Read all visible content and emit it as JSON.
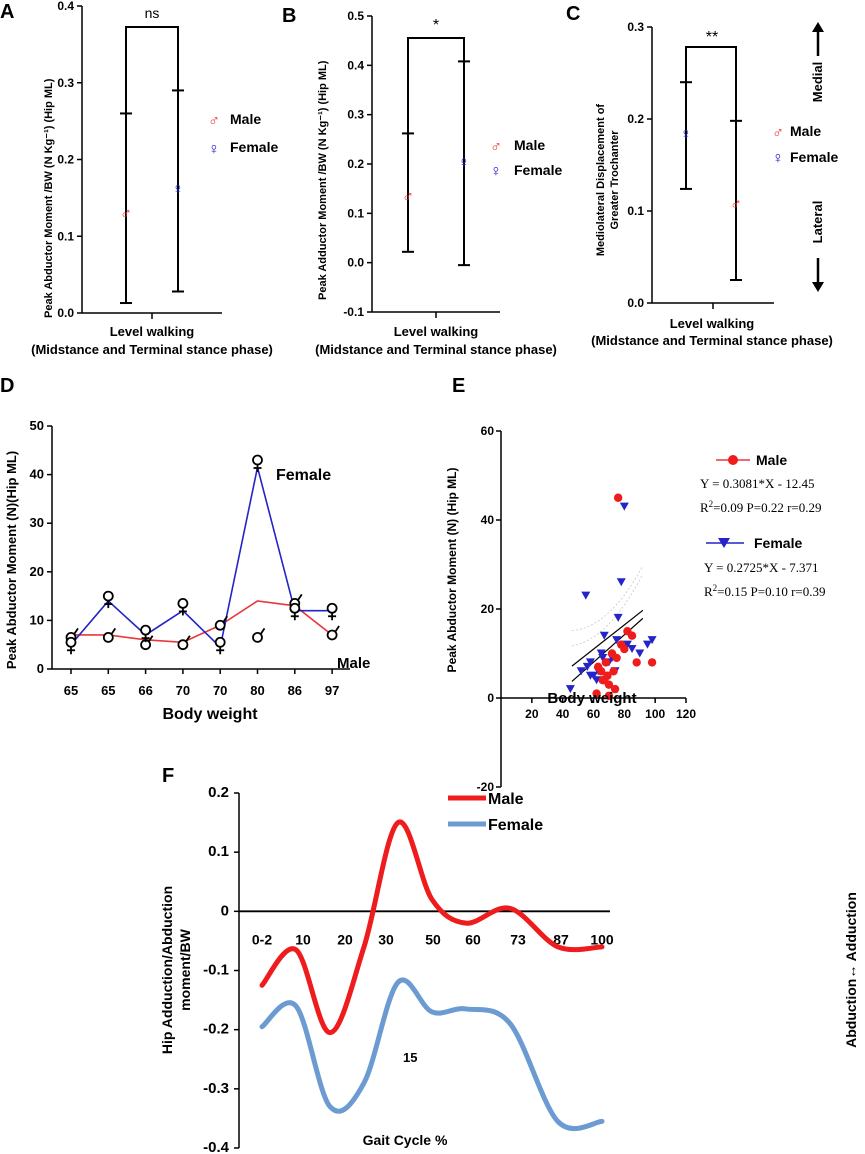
{
  "colors": {
    "male": "#e8383b",
    "female": "#2424c8",
    "axis": "#000000",
    "male_f": "#ee1c1c",
    "female_f": "#6b9bd1"
  },
  "symbols": {
    "male": "♂",
    "female": "♀"
  },
  "chart_data": [
    {
      "id": "A",
      "type": "scatter",
      "panel_label": "A",
      "ylabel": "Peak Abductor Moment /BW (N Kg⁻¹) (Hip ML)",
      "xlabel_line1": "Level walking",
      "xlabel_line2": "(Midstance and Terminal stance phase)",
      "ylim": [
        0,
        0.4
      ],
      "yticks": [
        "0.0",
        "0.1",
        "0.2",
        "0.3",
        "0.4"
      ],
      "series": [
        {
          "name": "Male",
          "mean": 0.13,
          "lower": 0.013,
          "upper": 0.26
        },
        {
          "name": "Female",
          "mean": 0.163,
          "lower": 0.028,
          "upper": 0.29
        }
      ],
      "significance": "ns",
      "legend": [
        "Male",
        "Female"
      ]
    },
    {
      "id": "B",
      "type": "scatter",
      "panel_label": "B",
      "ylabel": "Peak Adductor Moment /BW (N Kg⁻¹) (Hip ML)",
      "xlabel_line1": "Level walking",
      "xlabel_line2": "(Midstance and Terminal stance phase)",
      "ylim": [
        -0.1,
        0.5
      ],
      "yticks": [
        "-0.1",
        "0.0",
        "0.1",
        "0.2",
        "0.3",
        "0.4",
        "0.5"
      ],
      "series": [
        {
          "name": "Male",
          "mean": 0.135,
          "lower": 0.022,
          "upper": 0.262
        },
        {
          "name": "Female",
          "mean": 0.205,
          "lower": -0.005,
          "upper": 0.408
        }
      ],
      "significance": "*",
      "legend": [
        "Male",
        "Female"
      ]
    },
    {
      "id": "C",
      "type": "scatter",
      "panel_label": "C",
      "ylabel_line1": "Mediolateral Displacement of",
      "ylabel_line2": "Greater Trochanter",
      "xlabel_line1": "Level walking",
      "xlabel_line2": "(Midstance and Terminal stance phase)",
      "ylim": [
        0,
        0.3
      ],
      "yticks": [
        "0.0",
        "0.1",
        "0.2",
        "0.3"
      ],
      "series": [
        {
          "name": "Female",
          "mean": 0.185,
          "lower": 0.124,
          "upper": 0.24
        },
        {
          "name": "Male",
          "mean": 0.108,
          "lower": 0.025,
          "upper": 0.198
        }
      ],
      "significance": "**",
      "legend": [
        "Male",
        "Female"
      ],
      "direction_top": "Medial",
      "direction_bottom": "Lateral"
    },
    {
      "id": "D",
      "type": "line",
      "panel_label": "D",
      "ylabel": "Peak Abductor Moment (N)(Hip ML)",
      "xlabel": "Body weight",
      "ylim": [
        0,
        50
      ],
      "yticks": [
        "0",
        "10",
        "20",
        "30",
        "40",
        "50"
      ],
      "categories": [
        "65",
        "65",
        "66",
        "70",
        "70",
        "80",
        "86",
        "97"
      ],
      "series": [
        {
          "name": "Male",
          "values": [
            7,
            7,
            6,
            5.5,
            9,
            14,
            13,
            7
          ]
        },
        {
          "name": "Female",
          "values": [
            5,
            14,
            7,
            12,
            4.5,
            41.5,
            12,
            12
          ]
        }
      ],
      "markers": [
        {
          "name": "Male",
          "values": [
            6.5,
            6.5,
            5,
            5,
            9,
            6.5,
            13.5,
            7
          ]
        },
        {
          "name": "Female",
          "values": [
            5.5,
            15,
            8,
            13.5,
            5.5,
            43,
            12.5,
            12.5
          ]
        }
      ],
      "annotations": [
        "Female",
        "Male"
      ]
    },
    {
      "id": "E",
      "type": "scatter",
      "panel_label": "E",
      "ylabel": "Peak Abductor Moment (N) (Hip ML)",
      "xlabel": "Body weight",
      "xlim": [
        0,
        120
      ],
      "ylim": [
        -20,
        60
      ],
      "xticks": [
        "20",
        "40",
        "60",
        "80",
        "100",
        "120"
      ],
      "yticks": [
        "-20",
        "0",
        "20",
        "40",
        "60"
      ],
      "series": [
        {
          "name": "Male",
          "x": [
            63,
            65,
            67,
            68,
            69,
            70,
            72,
            73,
            75,
            76,
            78,
            80,
            82,
            85,
            88,
            98,
            74,
            70,
            66,
            62
          ],
          "y": [
            7,
            6,
            4,
            8,
            5,
            0.5,
            10,
            6,
            9,
            45,
            12,
            11,
            15,
            14,
            8,
            8,
            2,
            3,
            4,
            1
          ]
        },
        {
          "name": "Female",
          "x": [
            45,
            52,
            55,
            58,
            60,
            62,
            63,
            65,
            67,
            68,
            70,
            72,
            74,
            75,
            78,
            80,
            82,
            85,
            90,
            95,
            98,
            58,
            66,
            76,
            56
          ],
          "y": [
            2,
            6,
            23,
            8,
            5,
            4,
            6,
            10,
            14,
            4,
            8,
            9,
            6,
            13,
            26,
            43,
            12,
            11,
            10,
            12,
            13,
            5,
            9,
            18,
            7
          ]
        }
      ],
      "regressions": [
        {
          "name": "Male",
          "slope": 0.3081,
          "intercept": -12.45
        },
        {
          "name": "Female",
          "slope": 0.2725,
          "intercept": -7.371
        }
      ],
      "legend": [
        "Male",
        "Female"
      ],
      "stats": [
        {
          "eq": "Y = 0.3081*X - 12.45",
          "r2_prefix": "R",
          "r2_sup": "2",
          "r2_rest": "=0.09  P=0.22 r=0.29"
        },
        {
          "eq": "Y = 0.2725*X - 7.371",
          "r2_prefix": "R",
          "r2_sup": "2",
          "r2_rest": "=0.15  P=0.10 r=0.39"
        }
      ]
    },
    {
      "id": "F",
      "type": "line",
      "panel_label": "F",
      "ylabel_line1": "Hip Adduction/Abduction",
      "ylabel_line2": "moment/BW",
      "xlabel": "Gait Cycle %",
      "ylim": [
        -0.4,
        0.2
      ],
      "yticks": [
        "0.2",
        "0.1",
        "0",
        "-0.1",
        "-0.2",
        "-0.3",
        "-0.4"
      ],
      "categories": [
        "0-2",
        "10",
        "20",
        "30",
        "50",
        "60",
        "73",
        "87",
        "100"
      ],
      "series": [
        {
          "name": "Male",
          "x": [
            0,
            10,
            20,
            30,
            40,
            50,
            60,
            73,
            87,
            100
          ],
          "values": [
            -0.125,
            -0.065,
            -0.205,
            -0.06,
            0.15,
            0.02,
            -0.02,
            0.005,
            -0.06,
            -0.06
          ]
        },
        {
          "name": "Female",
          "x": [
            0,
            10,
            20,
            30,
            40,
            50,
            60,
            73,
            87,
            100
          ],
          "values": [
            -0.195,
            -0.16,
            -0.33,
            -0.29,
            -0.12,
            -0.17,
            -0.165,
            -0.19,
            -0.355,
            -0.355
          ]
        }
      ],
      "annotation": "15",
      "legend": [
        "Male",
        "Female"
      ],
      "right_label": "Abduction↔ Adduction"
    }
  ]
}
